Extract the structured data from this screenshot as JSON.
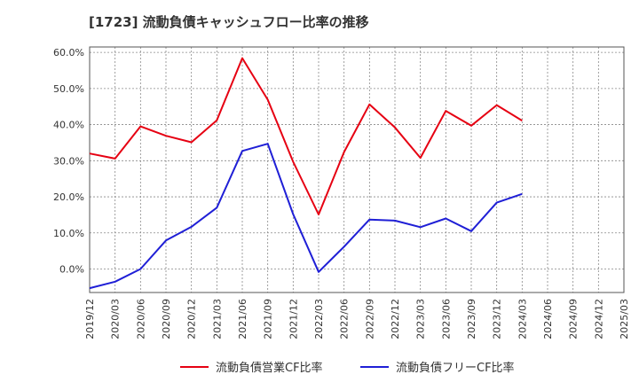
{
  "chart_data": {
    "type": "line",
    "title": "[1723]  流動負債キャッシュフロー比率の推移",
    "xlabel": "",
    "ylabel": "",
    "x": [
      "2019/12",
      "2020/03",
      "2020/06",
      "2020/09",
      "2020/12",
      "2021/03",
      "2021/06",
      "2021/09",
      "2021/12",
      "2022/03",
      "2022/06",
      "2022/09",
      "2022/12",
      "2023/03",
      "2023/06",
      "2023/09",
      "2023/12",
      "2024/03"
    ],
    "x_ticks": [
      "2019/12",
      "2020/03",
      "2020/06",
      "2020/09",
      "2020/12",
      "2021/03",
      "2021/06",
      "2021/09",
      "2021/12",
      "2022/03",
      "2022/06",
      "2022/09",
      "2022/12",
      "2023/03",
      "2023/06",
      "2023/09",
      "2023/12",
      "2024/03",
      "2024/06",
      "2024/09",
      "2024/12",
      "2025/03"
    ],
    "y_ticks": [
      "0.0%",
      "10.0%",
      "20.0%",
      "30.0%",
      "40.0%",
      "50.0%",
      "60.0%"
    ],
    "ylim": [
      -6.5,
      61.5
    ],
    "y_unit": "%",
    "grid": true,
    "legend_position": "bottom",
    "series": [
      {
        "name": "流動負債営業CF比率",
        "color": "#e60012",
        "values": [
          32.0,
          30.6,
          39.5,
          36.9,
          35.1,
          41.2,
          58.4,
          46.9,
          29.7,
          15.1,
          32.4,
          45.6,
          39.2,
          30.8,
          43.8,
          39.7,
          45.4,
          41.1
        ]
      },
      {
        "name": "流動負債フリーCF比率",
        "color": "#1f1fd6",
        "values": [
          -5.3,
          -3.5,
          0.0,
          7.9,
          11.7,
          17.0,
          32.7,
          34.7,
          15.2,
          -0.8,
          6.2,
          13.7,
          13.4,
          11.6,
          14.0,
          10.5,
          18.4,
          20.8
        ]
      }
    ]
  }
}
